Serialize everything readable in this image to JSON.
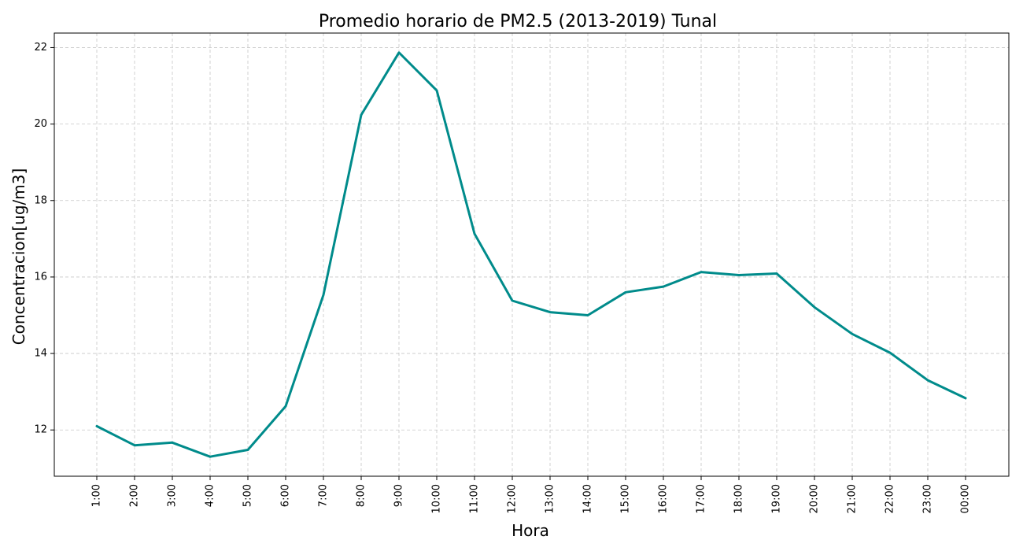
{
  "chart_data": {
    "type": "line",
    "title": "Promedio horario de PM2.5 (2013-2019) Tunal",
    "xlabel": "Hora",
    "ylabel": "Concentracion[ug/m3]",
    "categories": [
      "1:00",
      "2:00",
      "3:00",
      "4:00",
      "5:00",
      "6:00",
      "7:00",
      "8:00",
      "9:00",
      "10:00",
      "11:00",
      "12:00",
      "13:00",
      "14:00",
      "15:00",
      "16:00",
      "17:00",
      "18:00",
      "19:00",
      "20:00",
      "21:00",
      "22:00",
      "23:00",
      "00:00"
    ],
    "series": [
      {
        "values": [
          12.1,
          11.6,
          11.67,
          11.3,
          11.48,
          12.62,
          15.53,
          20.24,
          21.87,
          20.88,
          17.13,
          15.38,
          15.08,
          15.0,
          15.6,
          15.75,
          16.13,
          16.05,
          16.09,
          15.21,
          14.51,
          14.02,
          13.3,
          12.83
        ],
        "color": "#008b8b"
      }
    ],
    "yticks": [
      12,
      14,
      16,
      18,
      20,
      22
    ],
    "ylim": [
      10.79,
      22.38
    ],
    "grid": true,
    "legend": "none"
  }
}
